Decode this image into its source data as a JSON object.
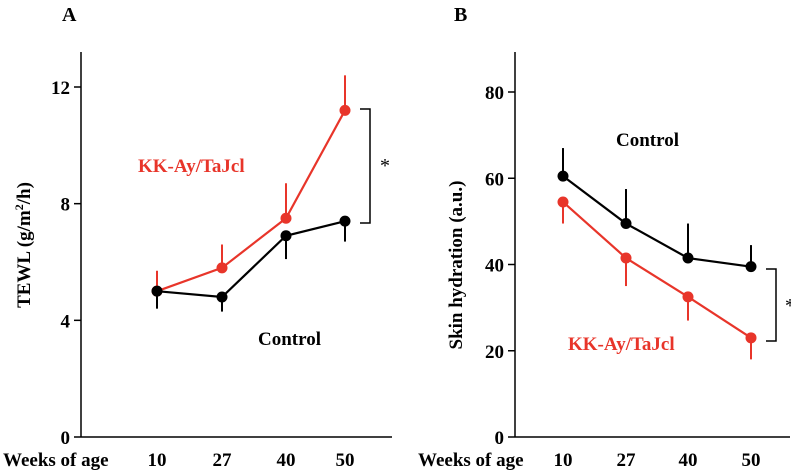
{
  "chart_data": [
    {
      "panel": "A",
      "type": "line",
      "ylabel_main": "TEWL (g/m",
      "ylabel_sup": "2",
      "ylabel_tail": "/h)",
      "xlabel": "Weeks of age",
      "categories": [
        "10",
        "27",
        "40",
        "50"
      ],
      "ylim": [
        0,
        13.5
      ],
      "yticks": [
        0,
        4,
        8,
        12
      ],
      "significance": "*",
      "series": [
        {
          "name": "KK-Ay/TaJcl",
          "color": "#e8352a",
          "values": [
            5.0,
            5.8,
            7.5,
            11.2
          ],
          "error": [
            0.7,
            0.8,
            1.2,
            1.2
          ],
          "error_dir": "up"
        },
        {
          "name": "Control",
          "color": "#000000",
          "values": [
            5.0,
            4.8,
            6.9,
            7.4
          ],
          "error": [
            0.6,
            0.5,
            0.8,
            0.7
          ],
          "error_dir": "down"
        }
      ]
    },
    {
      "panel": "B",
      "type": "line",
      "ylabel_main": "Skin hydration (a.u.)",
      "xlabel": "Weeks of age",
      "categories": [
        "10",
        "27",
        "40",
        "50"
      ],
      "ylim": [
        0,
        90
      ],
      "yticks": [
        0,
        20,
        40,
        60,
        80
      ],
      "significance": "*",
      "series": [
        {
          "name": "Control",
          "color": "#000000",
          "values": [
            60.5,
            49.5,
            41.5,
            39.5
          ],
          "error": [
            6.5,
            8.0,
            8.0,
            5.0
          ],
          "error_dir": "up"
        },
        {
          "name": "KK-Ay/TaJcl",
          "color": "#e8352a",
          "values": [
            54.5,
            41.5,
            32.5,
            23.0
          ],
          "error": [
            5.0,
            6.5,
            5.5,
            5.0
          ],
          "error_dir": "down"
        }
      ]
    }
  ]
}
